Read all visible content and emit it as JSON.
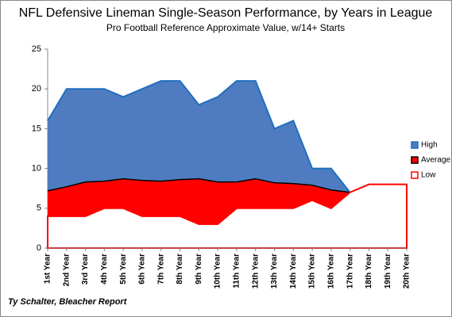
{
  "chart_data": {
    "type": "area",
    "title": "NFL Defensive Lineman Single-Season Performance, by Years in League",
    "subtitle": "Pro Football Reference Approximate Value, w/14+ Starts",
    "source": "Ty Schalter, Bleacher Report",
    "categories": [
      "1st Year",
      "2nd Year",
      "3rd Year",
      "4th Year",
      "5th Year",
      "6th Year",
      "7th Year",
      "8th Year",
      "9th Year",
      "10th Year",
      "11th Year",
      "12th Year",
      "13th Year",
      "14th Year",
      "15th Year",
      "16th Year",
      "17th Year",
      "18th Year",
      "19th Year",
      "20th Year"
    ],
    "series": [
      {
        "name": "High",
        "color": "#4f7cc0",
        "values": [
          16,
          20,
          20,
          20,
          19,
          20,
          21,
          21,
          18,
          19,
          21,
          21,
          15,
          16,
          10,
          10,
          7,
          null,
          null,
          null
        ]
      },
      {
        "name": "Average",
        "color": "#ff0000",
        "values": [
          7.2,
          7.7,
          8.3,
          8.4,
          8.7,
          8.5,
          8.4,
          8.6,
          8.7,
          8.3,
          8.3,
          8.7,
          8.2,
          8.1,
          7.9,
          7.3,
          7.0,
          null,
          null,
          null
        ]
      },
      {
        "name": "Low",
        "color": "#ffffff",
        "values": [
          4,
          4,
          4,
          5,
          5,
          4,
          4,
          4,
          3,
          3,
          5,
          5,
          5,
          5,
          6,
          5,
          7,
          8,
          8,
          8
        ]
      }
    ],
    "ylim": [
      0,
      25
    ],
    "yticks": [
      0,
      5,
      10,
      15,
      20,
      25
    ],
    "legend": "right"
  }
}
